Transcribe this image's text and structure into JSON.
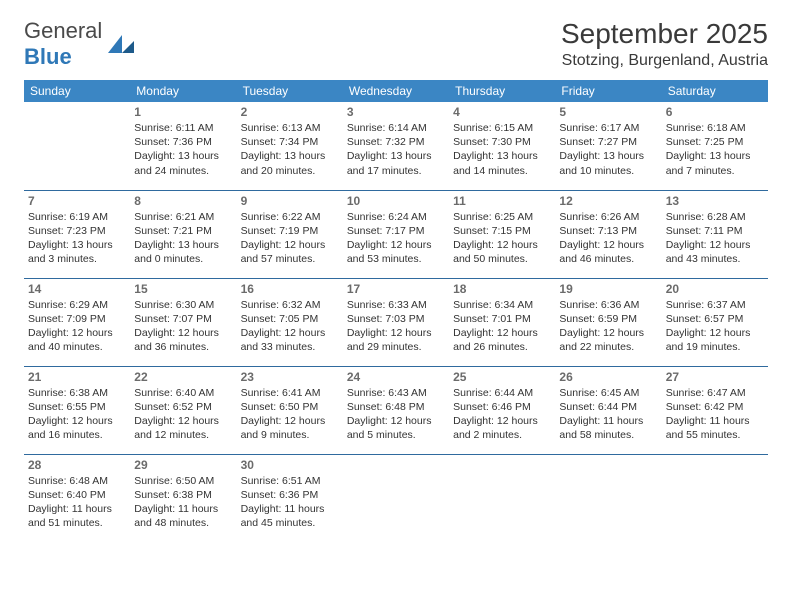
{
  "logo": {
    "word1": "General",
    "word2": "Blue"
  },
  "month_title": "September 2025",
  "location": "Stotzing, Burgenland, Austria",
  "colors": {
    "header_bg": "#3b86c4",
    "header_text": "#ffffff",
    "row_border": "#2f6a9e",
    "logo_blue": "#2f78b7",
    "daynum": "#6b6b6b",
    "body_text": "#333333",
    "page_bg": "#ffffff"
  },
  "columns": [
    "Sunday",
    "Monday",
    "Tuesday",
    "Wednesday",
    "Thursday",
    "Friday",
    "Saturday"
  ],
  "weeks": [
    [
      null,
      {
        "day": "1",
        "sunrise": "Sunrise: 6:11 AM",
        "sunset": "Sunset: 7:36 PM",
        "daylight1": "Daylight: 13 hours",
        "daylight2": "and 24 minutes."
      },
      {
        "day": "2",
        "sunrise": "Sunrise: 6:13 AM",
        "sunset": "Sunset: 7:34 PM",
        "daylight1": "Daylight: 13 hours",
        "daylight2": "and 20 minutes."
      },
      {
        "day": "3",
        "sunrise": "Sunrise: 6:14 AM",
        "sunset": "Sunset: 7:32 PM",
        "daylight1": "Daylight: 13 hours",
        "daylight2": "and 17 minutes."
      },
      {
        "day": "4",
        "sunrise": "Sunrise: 6:15 AM",
        "sunset": "Sunset: 7:30 PM",
        "daylight1": "Daylight: 13 hours",
        "daylight2": "and 14 minutes."
      },
      {
        "day": "5",
        "sunrise": "Sunrise: 6:17 AM",
        "sunset": "Sunset: 7:27 PM",
        "daylight1": "Daylight: 13 hours",
        "daylight2": "and 10 minutes."
      },
      {
        "day": "6",
        "sunrise": "Sunrise: 6:18 AM",
        "sunset": "Sunset: 7:25 PM",
        "daylight1": "Daylight: 13 hours",
        "daylight2": "and 7 minutes."
      }
    ],
    [
      {
        "day": "7",
        "sunrise": "Sunrise: 6:19 AM",
        "sunset": "Sunset: 7:23 PM",
        "daylight1": "Daylight: 13 hours",
        "daylight2": "and 3 minutes."
      },
      {
        "day": "8",
        "sunrise": "Sunrise: 6:21 AM",
        "sunset": "Sunset: 7:21 PM",
        "daylight1": "Daylight: 13 hours",
        "daylight2": "and 0 minutes."
      },
      {
        "day": "9",
        "sunrise": "Sunrise: 6:22 AM",
        "sunset": "Sunset: 7:19 PM",
        "daylight1": "Daylight: 12 hours",
        "daylight2": "and 57 minutes."
      },
      {
        "day": "10",
        "sunrise": "Sunrise: 6:24 AM",
        "sunset": "Sunset: 7:17 PM",
        "daylight1": "Daylight: 12 hours",
        "daylight2": "and 53 minutes."
      },
      {
        "day": "11",
        "sunrise": "Sunrise: 6:25 AM",
        "sunset": "Sunset: 7:15 PM",
        "daylight1": "Daylight: 12 hours",
        "daylight2": "and 50 minutes."
      },
      {
        "day": "12",
        "sunrise": "Sunrise: 6:26 AM",
        "sunset": "Sunset: 7:13 PM",
        "daylight1": "Daylight: 12 hours",
        "daylight2": "and 46 minutes."
      },
      {
        "day": "13",
        "sunrise": "Sunrise: 6:28 AM",
        "sunset": "Sunset: 7:11 PM",
        "daylight1": "Daylight: 12 hours",
        "daylight2": "and 43 minutes."
      }
    ],
    [
      {
        "day": "14",
        "sunrise": "Sunrise: 6:29 AM",
        "sunset": "Sunset: 7:09 PM",
        "daylight1": "Daylight: 12 hours",
        "daylight2": "and 40 minutes."
      },
      {
        "day": "15",
        "sunrise": "Sunrise: 6:30 AM",
        "sunset": "Sunset: 7:07 PM",
        "daylight1": "Daylight: 12 hours",
        "daylight2": "and 36 minutes."
      },
      {
        "day": "16",
        "sunrise": "Sunrise: 6:32 AM",
        "sunset": "Sunset: 7:05 PM",
        "daylight1": "Daylight: 12 hours",
        "daylight2": "and 33 minutes."
      },
      {
        "day": "17",
        "sunrise": "Sunrise: 6:33 AM",
        "sunset": "Sunset: 7:03 PM",
        "daylight1": "Daylight: 12 hours",
        "daylight2": "and 29 minutes."
      },
      {
        "day": "18",
        "sunrise": "Sunrise: 6:34 AM",
        "sunset": "Sunset: 7:01 PM",
        "daylight1": "Daylight: 12 hours",
        "daylight2": "and 26 minutes."
      },
      {
        "day": "19",
        "sunrise": "Sunrise: 6:36 AM",
        "sunset": "Sunset: 6:59 PM",
        "daylight1": "Daylight: 12 hours",
        "daylight2": "and 22 minutes."
      },
      {
        "day": "20",
        "sunrise": "Sunrise: 6:37 AM",
        "sunset": "Sunset: 6:57 PM",
        "daylight1": "Daylight: 12 hours",
        "daylight2": "and 19 minutes."
      }
    ],
    [
      {
        "day": "21",
        "sunrise": "Sunrise: 6:38 AM",
        "sunset": "Sunset: 6:55 PM",
        "daylight1": "Daylight: 12 hours",
        "daylight2": "and 16 minutes."
      },
      {
        "day": "22",
        "sunrise": "Sunrise: 6:40 AM",
        "sunset": "Sunset: 6:52 PM",
        "daylight1": "Daylight: 12 hours",
        "daylight2": "and 12 minutes."
      },
      {
        "day": "23",
        "sunrise": "Sunrise: 6:41 AM",
        "sunset": "Sunset: 6:50 PM",
        "daylight1": "Daylight: 12 hours",
        "daylight2": "and 9 minutes."
      },
      {
        "day": "24",
        "sunrise": "Sunrise: 6:43 AM",
        "sunset": "Sunset: 6:48 PM",
        "daylight1": "Daylight: 12 hours",
        "daylight2": "and 5 minutes."
      },
      {
        "day": "25",
        "sunrise": "Sunrise: 6:44 AM",
        "sunset": "Sunset: 6:46 PM",
        "daylight1": "Daylight: 12 hours",
        "daylight2": "and 2 minutes."
      },
      {
        "day": "26",
        "sunrise": "Sunrise: 6:45 AM",
        "sunset": "Sunset: 6:44 PM",
        "daylight1": "Daylight: 11 hours",
        "daylight2": "and 58 minutes."
      },
      {
        "day": "27",
        "sunrise": "Sunrise: 6:47 AM",
        "sunset": "Sunset: 6:42 PM",
        "daylight1": "Daylight: 11 hours",
        "daylight2": "and 55 minutes."
      }
    ],
    [
      {
        "day": "28",
        "sunrise": "Sunrise: 6:48 AM",
        "sunset": "Sunset: 6:40 PM",
        "daylight1": "Daylight: 11 hours",
        "daylight2": "and 51 minutes."
      },
      {
        "day": "29",
        "sunrise": "Sunrise: 6:50 AM",
        "sunset": "Sunset: 6:38 PM",
        "daylight1": "Daylight: 11 hours",
        "daylight2": "and 48 minutes."
      },
      {
        "day": "30",
        "sunrise": "Sunrise: 6:51 AM",
        "sunset": "Sunset: 6:36 PM",
        "daylight1": "Daylight: 11 hours",
        "daylight2": "and 45 minutes."
      },
      null,
      null,
      null,
      null
    ]
  ]
}
